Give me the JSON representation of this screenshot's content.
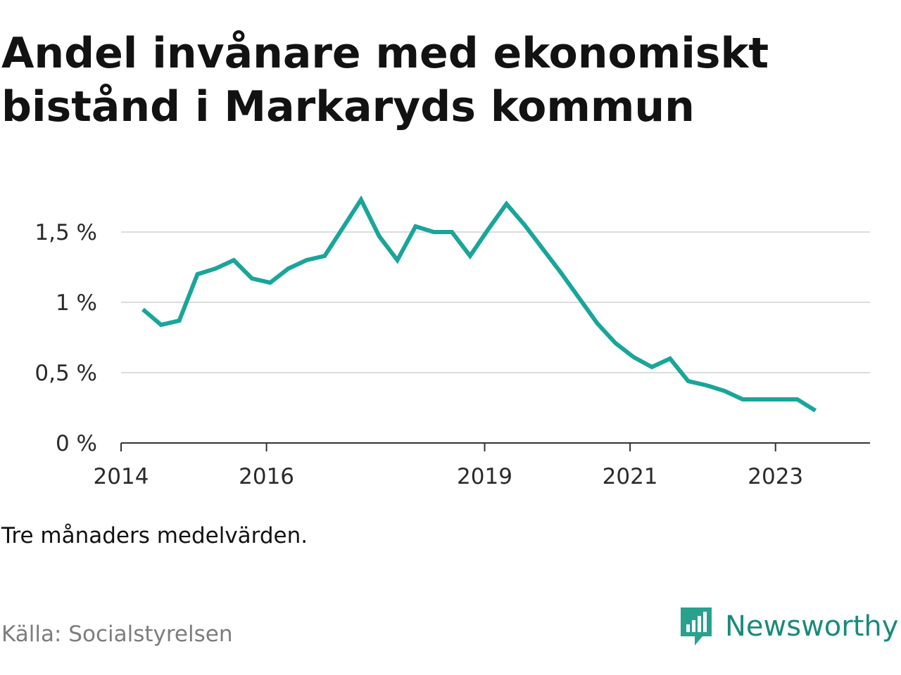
{
  "chart_data": {
    "type": "line",
    "title": "Andel invånare med ekonomiskt bistånd i Markaryds kommun",
    "subtitle": "Tre månaders medelvärden.",
    "source": "Källa: Socialstyrelsen",
    "brand": "Newsworthy",
    "line_color": "#1aa59a",
    "grid": true,
    "xlim": [
      2014.0,
      2024.3
    ],
    "ylim": [
      0,
      1.75
    ],
    "x_ticks": [
      {
        "value": 2014,
        "label": "2014"
      },
      {
        "value": 2016,
        "label": "2016"
      },
      {
        "value": 2019,
        "label": "2019"
      },
      {
        "value": 2021,
        "label": "2021"
      },
      {
        "value": 2023,
        "label": "2023"
      }
    ],
    "y_ticks": [
      {
        "value": 0,
        "label": "0 %"
      },
      {
        "value": 0.5,
        "label": "0,5 %"
      },
      {
        "value": 1,
        "label": "1 %"
      },
      {
        "value": 1.5,
        "label": "1,5 %"
      }
    ],
    "series": [
      {
        "x": [
          2014.3,
          2014.55,
          2014.8,
          2015.05,
          2015.3,
          2015.55,
          2015.8,
          2016.05,
          2016.3,
          2016.55,
          2016.8,
          2017.05,
          2017.3,
          2017.55,
          2017.8,
          2018.05,
          2018.3,
          2018.55,
          2018.8,
          2019.05,
          2019.3,
          2019.55,
          2019.8,
          2020.05,
          2020.3,
          2020.55,
          2020.8,
          2021.05,
          2021.3,
          2021.55,
          2021.8,
          2022.05,
          2022.3,
          2022.55,
          2022.8,
          2023.05,
          2023.3,
          2023.55
        ],
        "y": [
          0.95,
          0.84,
          0.87,
          1.2,
          1.24,
          1.3,
          1.17,
          1.14,
          1.24,
          1.3,
          1.33,
          1.53,
          1.73,
          1.47,
          1.3,
          1.54,
          1.5,
          1.5,
          1.33,
          1.52,
          1.7,
          1.55,
          1.38,
          1.21,
          1.03,
          0.85,
          0.71,
          0.61,
          0.54,
          0.6,
          0.44,
          0.41,
          0.37,
          0.31,
          0.31,
          0.31,
          0.31,
          0.23
        ]
      }
    ]
  }
}
